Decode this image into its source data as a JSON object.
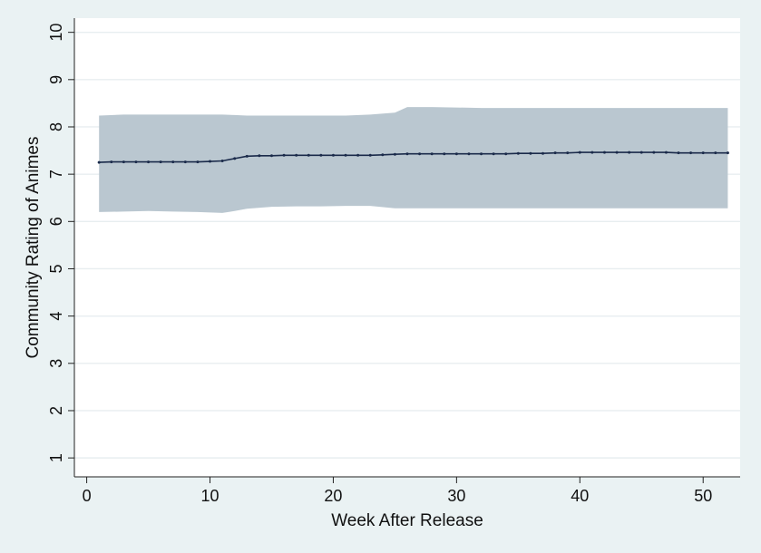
{
  "chart_data": {
    "type": "line",
    "title": "",
    "xlabel": "Week After Release",
    "ylabel": "Community Rating of Animes",
    "xlim": [
      -1,
      53
    ],
    "ylim": [
      0.6,
      10.3
    ],
    "xticks": [
      0,
      10,
      20,
      30,
      40,
      50
    ],
    "yticks": [
      1,
      2,
      3,
      4,
      5,
      6,
      7,
      8,
      9,
      10
    ],
    "grid": "horizontal",
    "legend": "none",
    "colors": {
      "background": "#eaf2f3",
      "plot_area": "#ffffff",
      "band": "#bac7d0",
      "line": "#1a2a4a",
      "grid": "#e8eef0"
    },
    "band": {
      "x": [
        1,
        3,
        5,
        7,
        9,
        11,
        12,
        13,
        15,
        17,
        19,
        21,
        23,
        25,
        26,
        28,
        30,
        32,
        34,
        36,
        38,
        40,
        42,
        44,
        46,
        48,
        50,
        52
      ],
      "upper": [
        8.24,
        8.26,
        8.26,
        8.26,
        8.26,
        8.26,
        8.25,
        8.24,
        8.24,
        8.24,
        8.24,
        8.24,
        8.26,
        8.3,
        8.42,
        8.42,
        8.41,
        8.4,
        8.4,
        8.4,
        8.4,
        8.4,
        8.4,
        8.4,
        8.4,
        8.4,
        8.4,
        8.4
      ],
      "lower": [
        6.2,
        6.21,
        6.22,
        6.21,
        6.2,
        6.18,
        6.22,
        6.27,
        6.31,
        6.32,
        6.32,
        6.33,
        6.33,
        6.28,
        6.28,
        6.28,
        6.28,
        6.28,
        6.28,
        6.28,
        6.28,
        6.28,
        6.28,
        6.28,
        6.28,
        6.28,
        6.28,
        6.28
      ]
    },
    "series": [
      {
        "x": [
          1,
          2,
          3,
          4,
          5,
          6,
          7,
          8,
          9,
          10,
          11,
          12,
          13,
          14,
          15,
          16,
          17,
          18,
          19,
          20,
          21,
          22,
          23,
          24,
          25,
          26,
          27,
          28,
          29,
          30,
          31,
          32,
          33,
          34,
          35,
          36,
          37,
          38,
          39,
          40,
          41,
          42,
          43,
          44,
          45,
          46,
          47,
          48,
          49,
          50,
          51,
          52
        ],
        "values": [
          7.25,
          7.26,
          7.26,
          7.26,
          7.26,
          7.26,
          7.26,
          7.26,
          7.26,
          7.27,
          7.28,
          7.33,
          7.38,
          7.39,
          7.39,
          7.4,
          7.4,
          7.4,
          7.4,
          7.4,
          7.4,
          7.4,
          7.4,
          7.41,
          7.42,
          7.43,
          7.43,
          7.43,
          7.43,
          7.43,
          7.43,
          7.43,
          7.43,
          7.43,
          7.44,
          7.44,
          7.44,
          7.45,
          7.45,
          7.46,
          7.46,
          7.46,
          7.46,
          7.46,
          7.46,
          7.46,
          7.46,
          7.45,
          7.45,
          7.45,
          7.45,
          7.45
        ]
      }
    ]
  }
}
